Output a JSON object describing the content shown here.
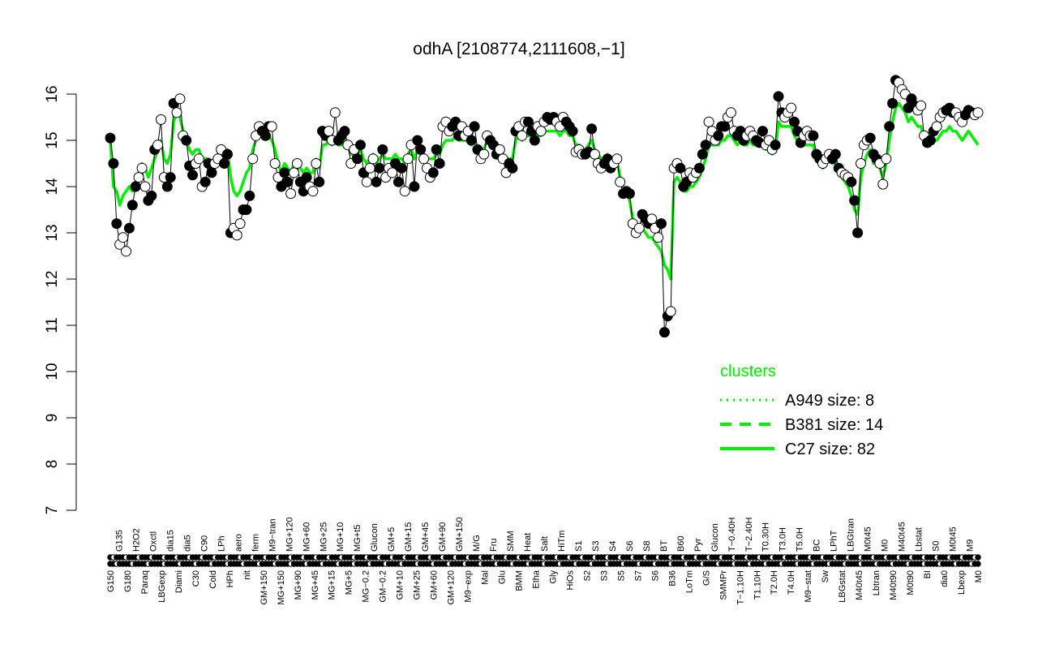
{
  "chart_data": {
    "type": "line",
    "title": "odhA [2108774,2111608,−1]",
    "xlabel": "",
    "ylabel": "",
    "ylim": [
      7,
      16.5
    ],
    "yticks": [
      7,
      8,
      9,
      10,
      11,
      12,
      13,
      14,
      15,
      16
    ],
    "grid": false,
    "tick_labels_x": [
      "G150",
      "G135",
      "G180",
      "H2O2",
      "Paraq",
      "Oxctl",
      "LBGexp",
      "dia15",
      "Diami",
      "dia5",
      "C30",
      "C90",
      "Cold",
      "LPh",
      "HPh",
      "aero",
      "nit",
      "ferm",
      "GM+150",
      "M9−tran",
      "MG+150",
      "MG+120",
      "MG+90",
      "MG+60",
      "MG+45",
      "MG+25",
      "MG+15",
      "MG+10",
      "MG+5",
      "MG+t5",
      "MG−0.2",
      "Glucon",
      "GM−0.2",
      "GM+5",
      "GM+10",
      "GM+15",
      "GM+25",
      "GM+45",
      "GM+60",
      "GM+90",
      "GM+120",
      "GM+150",
      "M9−exp",
      "M/G",
      "Mal",
      "Fru",
      "Glu",
      "SMM",
      "BMM",
      "Heat",
      "Etha",
      "Salt",
      "Gly",
      "HiTm",
      "HiOs",
      "S1",
      "S2",
      "S3",
      "S3",
      "S4",
      "S5",
      "S6",
      "S7",
      "S8",
      "S6",
      "BT",
      "B36",
      "B60",
      "LoTm",
      "Pyr",
      "G/S",
      "Glucon",
      "SMMPr",
      "T−0.40H",
      "T−1.10H",
      "T−2.40H",
      "T1.10H",
      "T0.30H",
      "T2.0H",
      "T3.0H",
      "T4.0H",
      "T5.0H",
      "M9−stat",
      "BC",
      "Sw",
      "LPhT",
      "LBGstat",
      "LBGtran",
      "M40t45",
      "M0t45",
      "Lbtran",
      "M0",
      "M40t90",
      "M40t45",
      "M0t90",
      "Lbstat",
      "BI",
      "S0",
      "dia0",
      "M0t45",
      "Lbexp",
      "M9",
      "M0"
    ],
    "legend": {
      "title": "clusters",
      "placement": "right",
      "color": "#00ee00",
      "entries": [
        {
          "name": "A949 size: 8",
          "style": "dotted"
        },
        {
          "name": "B381 size: 14",
          "style": "dashed"
        },
        {
          "name": "C27 size: 82",
          "style": "solid"
        }
      ]
    },
    "series": [
      {
        "name": "expression",
        "role": "black profile",
        "color": "#000000",
        "values": [
          15.05,
          14.5,
          13.2,
          12.75,
          12.9,
          12.6,
          13.1,
          13.6,
          14.0,
          14.2,
          14.4,
          14.0,
          13.7,
          13.8,
          14.8,
          14.9,
          15.45,
          14.2,
          14.0,
          14.2,
          15.8,
          15.6,
          15.9,
          15.1,
          15.0,
          14.45,
          14.25,
          14.5,
          14.6,
          14.0,
          14.1,
          14.5,
          14.3,
          14.5,
          14.6,
          14.8,
          14.5,
          14.7,
          13.0,
          13.1,
          12.95,
          13.2,
          13.5,
          13.5,
          13.8,
          14.6,
          15.1,
          15.3,
          15.2,
          15.1,
          15.3,
          15.3,
          14.5,
          14.2,
          14.0,
          14.3,
          14.1,
          13.85,
          14.3,
          14.5,
          14.1,
          13.9,
          14.2,
          14.0,
          13.9,
          14.5,
          14.1,
          15.2,
          15.1,
          15.2,
          15.0,
          15.6,
          15.0,
          15.1,
          15.2,
          14.9,
          14.5,
          14.8,
          14.6,
          14.9,
          14.3,
          14.1,
          14.4,
          14.6,
          14.1,
          14.4,
          14.8,
          14.2,
          14.4,
          14.3,
          14.5,
          14.1,
          14.4,
          13.9,
          14.6,
          14.9,
          14.0,
          15.0,
          14.8,
          14.6,
          14.4,
          14.2,
          14.3,
          14.8,
          14.5,
          15.3,
          15.4,
          15.2,
          15.3,
          15.4,
          15.1,
          15.3,
          15.1,
          15.2,
          15.0,
          15.3,
          14.8,
          14.6,
          14.7,
          15.1,
          15.0,
          14.9,
          14.7,
          14.8,
          14.6,
          14.3,
          14.5,
          14.4,
          15.2,
          15.3,
          15.1,
          15.4,
          15.4,
          15.2,
          15.0,
          15.3,
          15.2,
          15.4,
          15.5,
          15.45,
          15.5,
          15.4,
          15.3,
          15.5,
          15.4,
          15.3,
          15.2,
          14.75,
          14.8,
          14.7,
          14.7,
          14.75,
          15.25,
          14.7,
          14.5,
          14.4,
          14.5,
          14.6,
          14.4,
          14.5,
          14.6,
          14.1,
          13.85,
          13.9,
          13.85,
          13.2,
          13.0,
          13.1,
          13.4,
          13.3,
          13.2,
          13.3,
          13.1,
          12.9,
          13.2,
          10.85,
          11.2,
          11.3,
          14.4,
          14.5,
          14.4,
          14.0,
          14.1,
          14.3,
          14.2,
          14.3,
          14.4,
          14.7,
          14.9,
          15.4,
          15.2,
          15.0,
          15.1,
          15.3,
          15.3,
          15.5,
          15.6,
          15.2,
          15.1,
          15.2,
          15.0,
          15.1,
          15.2,
          15.1,
          15.0,
          14.95,
          15.2,
          14.9,
          15.0,
          14.8,
          14.9,
          15.95,
          15.6,
          15.5,
          15.6,
          15.7,
          15.4,
          15.2,
          14.95,
          15.1,
          15.2,
          15.1,
          15.1,
          14.7,
          14.6,
          14.5,
          14.6,
          14.7,
          14.6,
          14.7,
          14.4,
          14.3,
          14.25,
          14.2,
          14.1,
          13.7,
          13.0,
          14.5,
          14.9,
          15.0,
          15.05,
          14.7,
          14.6,
          14.5,
          14.05,
          14.6,
          15.3,
          15.8,
          16.3,
          16.25,
          16.1,
          16.0,
          15.7,
          15.9,
          15.75,
          15.65,
          15.75,
          15.1,
          14.95,
          15.0,
          15.2,
          15.3,
          15.5,
          15.6,
          15.65,
          15.7,
          15.6,
          15.6,
          15.5,
          15.4,
          15.55,
          15.65,
          15.6,
          15.55,
          15.6
        ]
      },
      {
        "name": "C27 size: 82",
        "role": "cluster centroid",
        "color": "#00ee00",
        "style": "solid",
        "values": [
          15.0,
          14.0,
          13.9,
          13.6,
          13.8,
          13.9,
          14.0,
          13.9,
          14.1,
          14.3,
          14.5,
          14.4,
          14.2,
          14.4,
          14.6,
          14.8,
          15.0,
          14.6,
          14.5,
          14.7,
          15.4,
          15.6,
          15.5,
          15.2,
          15.0,
          14.8,
          14.7,
          14.8,
          14.8,
          14.6,
          14.6,
          14.6,
          14.5,
          14.6,
          14.7,
          14.8,
          14.7,
          14.8,
          14.2,
          13.9,
          13.8,
          13.9,
          14.1,
          14.3,
          14.4,
          14.8,
          15.0,
          15.1,
          15.1,
          15.1,
          15.1,
          15.0,
          14.8,
          14.5,
          14.3,
          14.5,
          14.4,
          14.3,
          14.5,
          14.5,
          14.4,
          14.3,
          14.4,
          14.3,
          14.3,
          14.6,
          14.4,
          14.9,
          14.9,
          15.0,
          14.9,
          15.0,
          14.9,
          14.9,
          15.0,
          14.9,
          14.7,
          14.8,
          14.7,
          14.8,
          14.6,
          14.5,
          14.6,
          14.7,
          14.5,
          14.6,
          14.7,
          14.6,
          14.6,
          14.6,
          14.7,
          14.6,
          14.6,
          14.5,
          14.7,
          14.8,
          14.6,
          14.8,
          14.7,
          14.7,
          14.6,
          14.6,
          14.6,
          14.7,
          14.7,
          14.9,
          15.0,
          15.0,
          15.0,
          15.1,
          15.0,
          15.0,
          15.0,
          15.0,
          14.9,
          15.0,
          14.8,
          14.7,
          14.8,
          15.0,
          14.9,
          14.9,
          14.8,
          14.8,
          14.7,
          14.6,
          14.6,
          14.6,
          15.0,
          15.1,
          15.0,
          15.1,
          15.1,
          15.1,
          15.0,
          15.1,
          15.1,
          15.2,
          15.2,
          15.2,
          15.2,
          15.2,
          15.1,
          15.2,
          15.2,
          15.1,
          15.1,
          14.9,
          14.9,
          14.8,
          14.8,
          14.9,
          15.0,
          14.8,
          14.7,
          14.6,
          14.6,
          14.7,
          14.6,
          14.6,
          14.6,
          14.2,
          14.0,
          13.9,
          13.7,
          13.3,
          13.1,
          13.0,
          13.1,
          13.0,
          12.9,
          12.9,
          12.8,
          12.7,
          12.6,
          12.3,
          12.2,
          12.0,
          14.1,
          14.2,
          14.1,
          13.9,
          13.9,
          14.0,
          14.0,
          14.1,
          14.2,
          14.4,
          14.6,
          14.9,
          14.9,
          14.9,
          14.9,
          15.0,
          15.0,
          15.1,
          15.1,
          15.0,
          14.9,
          15.0,
          14.9,
          14.9,
          15.0,
          14.9,
          14.9,
          14.9,
          14.9,
          14.8,
          14.8,
          14.7,
          14.8,
          15.4,
          15.3,
          15.3,
          15.3,
          15.3,
          15.1,
          15.0,
          14.9,
          14.9,
          14.9,
          14.9,
          14.9,
          14.6,
          14.5,
          14.4,
          14.5,
          14.6,
          14.5,
          14.5,
          14.3,
          14.2,
          14.1,
          14.0,
          13.8,
          13.5,
          13.4,
          14.2,
          14.5,
          14.7,
          14.8,
          14.5,
          14.5,
          14.4,
          14.2,
          14.5,
          15.0,
          15.4,
          15.7,
          15.8,
          15.7,
          15.6,
          15.4,
          15.5,
          15.4,
          15.3,
          15.3,
          15.0,
          14.9,
          14.9,
          15.0,
          15.0,
          15.1,
          15.2,
          15.2,
          15.3,
          15.2,
          15.2,
          15.1,
          15.0,
          15.1,
          15.2,
          15.1,
          15.0,
          14.9
        ]
      }
    ]
  }
}
